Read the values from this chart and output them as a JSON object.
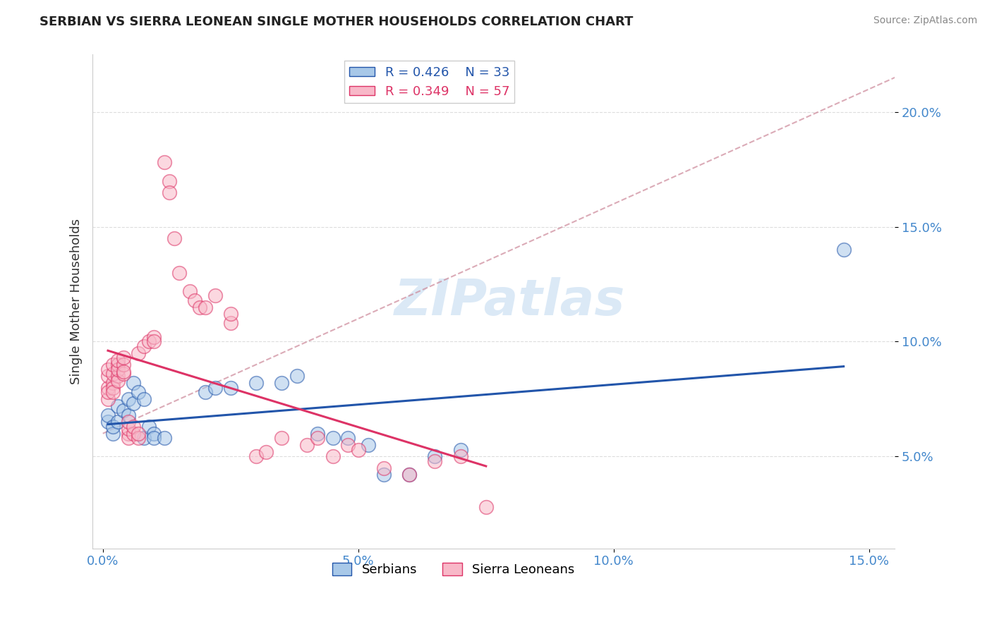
{
  "title": "SERBIAN VS SIERRA LEONEAN SINGLE MOTHER HOUSEHOLDS CORRELATION CHART",
  "source": "Source: ZipAtlas.com",
  "xlabel": "",
  "ylabel": "Single Mother Households",
  "xlim": [
    -0.002,
    0.155
  ],
  "ylim": [
    0.01,
    0.225
  ],
  "xticks": [
    0.0,
    0.05,
    0.1,
    0.15
  ],
  "xtick_labels": [
    "0.0%",
    "5.0%",
    "10.0%",
    "15.0%"
  ],
  "yticks": [
    0.05,
    0.1,
    0.15,
    0.2
  ],
  "ytick_labels": [
    "5.0%",
    "10.0%",
    "15.0%",
    "20.0%"
  ],
  "blue_color": "#a8c8e8",
  "pink_color": "#f8b8c8",
  "blue_line_color": "#2255aa",
  "pink_line_color": "#dd3366",
  "blue_scatter": [
    [
      0.001,
      0.065
    ],
    [
      0.001,
      0.068
    ],
    [
      0.002,
      0.06
    ],
    [
      0.002,
      0.063
    ],
    [
      0.003,
      0.065
    ],
    [
      0.003,
      0.072
    ],
    [
      0.004,
      0.07
    ],
    [
      0.005,
      0.068
    ],
    [
      0.005,
      0.075
    ],
    [
      0.006,
      0.073
    ],
    [
      0.006,
      0.082
    ],
    [
      0.007,
      0.078
    ],
    [
      0.008,
      0.075
    ],
    [
      0.008,
      0.058
    ],
    [
      0.009,
      0.063
    ],
    [
      0.01,
      0.06
    ],
    [
      0.01,
      0.058
    ],
    [
      0.012,
      0.058
    ],
    [
      0.02,
      0.078
    ],
    [
      0.022,
      0.08
    ],
    [
      0.025,
      0.08
    ],
    [
      0.03,
      0.082
    ],
    [
      0.035,
      0.082
    ],
    [
      0.038,
      0.085
    ],
    [
      0.042,
      0.06
    ],
    [
      0.045,
      0.058
    ],
    [
      0.048,
      0.058
    ],
    [
      0.052,
      0.055
    ],
    [
      0.055,
      0.042
    ],
    [
      0.06,
      0.042
    ],
    [
      0.065,
      0.05
    ],
    [
      0.07,
      0.053
    ],
    [
      0.145,
      0.14
    ]
  ],
  "pink_scatter": [
    [
      0.001,
      0.075
    ],
    [
      0.001,
      0.08
    ],
    [
      0.001,
      0.085
    ],
    [
      0.001,
      0.088
    ],
    [
      0.001,
      0.078
    ],
    [
      0.002,
      0.082
    ],
    [
      0.002,
      0.086
    ],
    [
      0.002,
      0.08
    ],
    [
      0.002,
      0.09
    ],
    [
      0.002,
      0.078
    ],
    [
      0.003,
      0.085
    ],
    [
      0.003,
      0.09
    ],
    [
      0.003,
      0.083
    ],
    [
      0.003,
      0.088
    ],
    [
      0.003,
      0.092
    ],
    [
      0.004,
      0.086
    ],
    [
      0.004,
      0.09
    ],
    [
      0.004,
      0.093
    ],
    [
      0.004,
      0.087
    ],
    [
      0.005,
      0.06
    ],
    [
      0.005,
      0.058
    ],
    [
      0.005,
      0.062
    ],
    [
      0.005,
      0.065
    ],
    [
      0.006,
      0.06
    ],
    [
      0.006,
      0.063
    ],
    [
      0.007,
      0.058
    ],
    [
      0.007,
      0.06
    ],
    [
      0.007,
      0.095
    ],
    [
      0.008,
      0.098
    ],
    [
      0.009,
      0.1
    ],
    [
      0.01,
      0.102
    ],
    [
      0.01,
      0.1
    ],
    [
      0.012,
      0.178
    ],
    [
      0.013,
      0.17
    ],
    [
      0.013,
      0.165
    ],
    [
      0.014,
      0.145
    ],
    [
      0.015,
      0.13
    ],
    [
      0.017,
      0.122
    ],
    [
      0.018,
      0.118
    ],
    [
      0.019,
      0.115
    ],
    [
      0.02,
      0.115
    ],
    [
      0.022,
      0.12
    ],
    [
      0.025,
      0.108
    ],
    [
      0.025,
      0.112
    ],
    [
      0.03,
      0.05
    ],
    [
      0.032,
      0.052
    ],
    [
      0.035,
      0.058
    ],
    [
      0.04,
      0.055
    ],
    [
      0.042,
      0.058
    ],
    [
      0.045,
      0.05
    ],
    [
      0.048,
      0.055
    ],
    [
      0.05,
      0.053
    ],
    [
      0.055,
      0.045
    ],
    [
      0.06,
      0.042
    ],
    [
      0.065,
      0.048
    ],
    [
      0.07,
      0.05
    ],
    [
      0.075,
      0.028
    ]
  ],
  "watermark_text": "ZIPatlas",
  "legend_blue_label": "R = 0.426    N = 33",
  "legend_pink_label": "R = 0.349    N = 57",
  "legend_serbians": "Serbians",
  "legend_sierraleoneans": "Sierra Leoneans",
  "ytick_color": "#4488cc",
  "xtick_color": "#4488cc",
  "grid_color": "#dddddd",
  "bg_color": "#ffffff"
}
